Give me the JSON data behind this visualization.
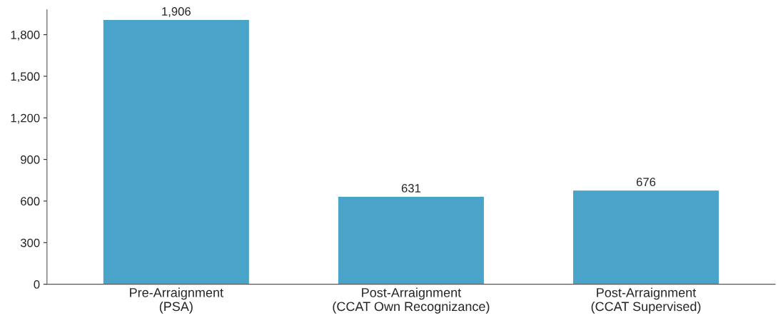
{
  "chart_data": {
    "type": "bar",
    "categories": [
      "Pre-Arraignment\n(PSA)",
      "Post-Arraignment\n(CCAT Own Recognizance)",
      "Post-Arraignment\n(CCAT Supervised)"
    ],
    "values": [
      1906,
      631,
      676
    ],
    "color": "#4aa3c8",
    "ylim": [
      0,
      1980
    ],
    "yticks": [
      {
        "value": 0,
        "label": "0"
      },
      {
        "value": 300,
        "label": "300"
      },
      {
        "value": 600,
        "label": "600"
      },
      {
        "value": 900,
        "label": "900"
      },
      {
        "value": 1200,
        "label": "1,200"
      },
      {
        "value": 1500,
        "label": "1,500"
      },
      {
        "value": 1800,
        "label": "1,800"
      }
    ],
    "value_labels": [
      "1,906",
      "631",
      "676"
    ],
    "grid": false
  }
}
